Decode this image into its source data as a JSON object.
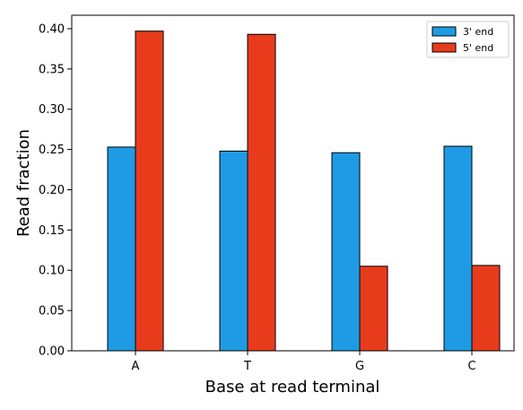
{
  "chart_data": {
    "type": "bar",
    "categories": [
      "A",
      "T",
      "G",
      "C"
    ],
    "series": [
      {
        "name": "3' end",
        "values": [
          0.253,
          0.248,
          0.246,
          0.254
        ],
        "color": "#1f9be6"
      },
      {
        "name": "5' end",
        "values": [
          0.397,
          0.393,
          0.105,
          0.106
        ],
        "color": "#e83b1c"
      }
    ],
    "xlabel": "Base at read terminal",
    "ylabel": "Read fraction",
    "ylim": [
      0,
      0.4167
    ],
    "yticks": [
      "0.00",
      "0.05",
      "0.10",
      "0.15",
      "0.20",
      "0.25",
      "0.30",
      "0.35",
      "0.40"
    ],
    "grid": false,
    "legend_position": "top-right"
  }
}
